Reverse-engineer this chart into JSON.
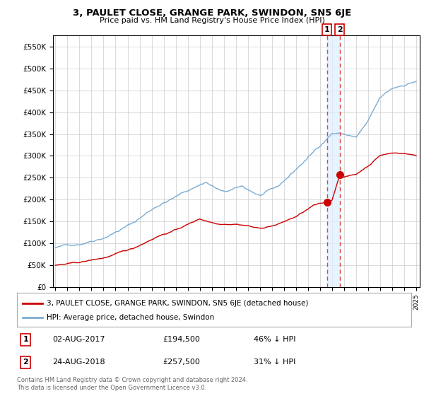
{
  "title": "3, PAULET CLOSE, GRANGE PARK, SWINDON, SN5 6JE",
  "subtitle": "Price paid vs. HM Land Registry's House Price Index (HPI)",
  "ylim": [
    0,
    575000
  ],
  "yticks": [
    0,
    50000,
    100000,
    150000,
    200000,
    250000,
    300000,
    350000,
    400000,
    450000,
    500000,
    550000
  ],
  "ytick_labels": [
    "£0",
    "£50K",
    "£100K",
    "£150K",
    "£200K",
    "£250K",
    "£300K",
    "£350K",
    "£400K",
    "£450K",
    "£500K",
    "£550K"
  ],
  "xlim_start": 1994.8,
  "xlim_end": 2025.3,
  "hpi_color": "#7aadd4",
  "price_color": "#cc0000",
  "vline_color": "#dd4444",
  "shade_color": "#ddeeff",
  "sale1_x": 2017.58,
  "sale1_y": 194500,
  "sale2_x": 2018.63,
  "sale2_y": 257500,
  "legend_label_red": "3, PAULET CLOSE, GRANGE PARK, SWINDON, SN5 6JE (detached house)",
  "legend_label_blue": "HPI: Average price, detached house, Swindon",
  "footer": "Contains HM Land Registry data © Crown copyright and database right 2024.\nThis data is licensed under the Open Government Licence v3.0.",
  "table_rows": [
    {
      "num": "1",
      "date": "02-AUG-2017",
      "price": "£194,500",
      "hpi": "46% ↓ HPI"
    },
    {
      "num": "2",
      "date": "24-AUG-2018",
      "price": "£257,500",
      "hpi": "31% ↓ HPI"
    }
  ],
  "background_color": "#ffffff",
  "grid_color": "#cccccc"
}
